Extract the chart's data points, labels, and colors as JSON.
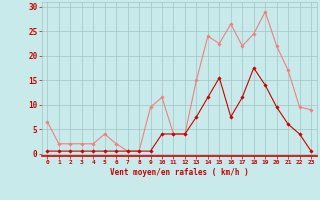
{
  "x": [
    0,
    1,
    2,
    3,
    4,
    5,
    6,
    7,
    8,
    9,
    10,
    11,
    12,
    13,
    14,
    15,
    16,
    17,
    18,
    19,
    20,
    21,
    22,
    23
  ],
  "rafales": [
    6.5,
    2,
    2,
    2,
    2,
    4,
    2,
    0.5,
    0.5,
    9.5,
    11.5,
    4,
    4,
    15,
    24,
    22.5,
    26.5,
    22,
    24.5,
    29,
    22,
    17,
    9.5,
    9
  ],
  "vent_moyen": [
    0.5,
    0.5,
    0.5,
    0.5,
    0.5,
    0.5,
    0.5,
    0.5,
    0.5,
    0.5,
    4,
    4,
    4,
    7.5,
    11.5,
    15.5,
    7.5,
    11.5,
    17.5,
    14,
    9.5,
    6,
    4,
    0.5
  ],
  "color_rafales": "#f08080",
  "color_vent": "#cc0000",
  "bg_color": "#c8eaea",
  "grid_color": "#a0c4c4",
  "xlabel": "Vent moyen/en rafales ( km/h )",
  "xlabel_color": "#cc0000",
  "ylabel_color": "#cc0000",
  "yticks": [
    0,
    5,
    10,
    15,
    20,
    25,
    30
  ],
  "ylim": [
    -0.5,
    31
  ],
  "xlim": [
    -0.5,
    23.5
  ]
}
